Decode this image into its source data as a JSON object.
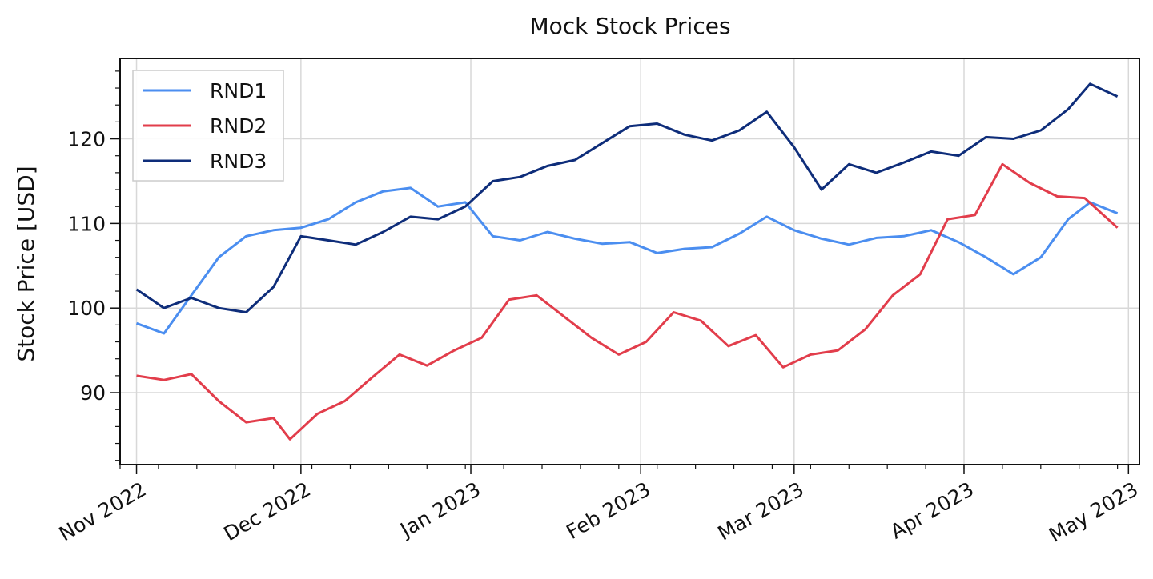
{
  "chart_data": {
    "type": "line",
    "title": "Mock Stock Prices",
    "xlabel": "",
    "ylabel": "Stock Price [USD]",
    "x_axis_type": "date",
    "xlim": [
      "2022-10-29",
      "2023-05-03"
    ],
    "ylim": [
      81.5,
      129.5
    ],
    "x_ticks": [
      "2022-11-01",
      "2022-12-01",
      "2023-01-01",
      "2023-02-01",
      "2023-03-01",
      "2023-04-01",
      "2023-05-01"
    ],
    "x_tick_labels": [
      "Nov 2022",
      "Dec 2022",
      "Jan 2023",
      "Feb 2023",
      "Mar 2023",
      "Apr 2023",
      "May 2023"
    ],
    "y_ticks": [
      90,
      100,
      110,
      120
    ],
    "y_tick_labels": [
      "90",
      "100",
      "110",
      "120"
    ],
    "grid": true,
    "legend_position": "top-left",
    "series": [
      {
        "name": "RND1",
        "color": "#4b8ef0",
        "points": [
          [
            "2022-11-01",
            98.2
          ],
          [
            "2022-11-06",
            97.0
          ],
          [
            "2022-11-11",
            101.5
          ],
          [
            "2022-11-16",
            106.0
          ],
          [
            "2022-11-21",
            108.5
          ],
          [
            "2022-11-26",
            109.2
          ],
          [
            "2022-12-01",
            109.5
          ],
          [
            "2022-12-06",
            110.5
          ],
          [
            "2022-12-11",
            112.5
          ],
          [
            "2022-12-16",
            113.8
          ],
          [
            "2022-12-21",
            114.2
          ],
          [
            "2022-12-26",
            112.0
          ],
          [
            "2022-12-31",
            112.5
          ],
          [
            "2023-01-05",
            108.5
          ],
          [
            "2023-01-10",
            108.0
          ],
          [
            "2023-01-15",
            109.0
          ],
          [
            "2023-01-20",
            108.2
          ],
          [
            "2023-01-25",
            107.6
          ],
          [
            "2023-01-30",
            107.8
          ],
          [
            "2023-02-04",
            106.5
          ],
          [
            "2023-02-09",
            107.0
          ],
          [
            "2023-02-14",
            107.2
          ],
          [
            "2023-02-19",
            108.8
          ],
          [
            "2023-02-24",
            110.8
          ],
          [
            "2023-03-01",
            109.2
          ],
          [
            "2023-03-06",
            108.2
          ],
          [
            "2023-03-11",
            107.5
          ],
          [
            "2023-03-16",
            108.3
          ],
          [
            "2023-03-21",
            108.5
          ],
          [
            "2023-03-26",
            109.2
          ],
          [
            "2023-03-31",
            107.8
          ],
          [
            "2023-04-05",
            106.0
          ],
          [
            "2023-04-10",
            104.0
          ],
          [
            "2023-04-15",
            106.0
          ],
          [
            "2023-04-20",
            110.5
          ],
          [
            "2023-04-24",
            112.5
          ],
          [
            "2023-04-29",
            111.2
          ]
        ]
      },
      {
        "name": "RND2",
        "color": "#e23d4b",
        "points": [
          [
            "2022-11-01",
            92.0
          ],
          [
            "2022-11-06",
            91.5
          ],
          [
            "2022-11-11",
            92.2
          ],
          [
            "2022-11-16",
            89.0
          ],
          [
            "2022-11-21",
            86.5
          ],
          [
            "2022-11-26",
            87.0
          ],
          [
            "2022-11-29",
            84.5
          ],
          [
            "2022-12-04",
            87.5
          ],
          [
            "2022-12-09",
            89.0
          ],
          [
            "2022-12-14",
            91.8
          ],
          [
            "2022-12-19",
            94.5
          ],
          [
            "2022-12-24",
            93.2
          ],
          [
            "2022-12-29",
            95.0
          ],
          [
            "2023-01-03",
            96.5
          ],
          [
            "2023-01-08",
            101.0
          ],
          [
            "2023-01-13",
            101.5
          ],
          [
            "2023-01-18",
            99.0
          ],
          [
            "2023-01-23",
            96.5
          ],
          [
            "2023-01-28",
            94.5
          ],
          [
            "2023-02-02",
            96.0
          ],
          [
            "2023-02-07",
            99.5
          ],
          [
            "2023-02-12",
            98.5
          ],
          [
            "2023-02-17",
            95.5
          ],
          [
            "2023-02-22",
            96.8
          ],
          [
            "2023-02-27",
            93.0
          ],
          [
            "2023-03-04",
            94.5
          ],
          [
            "2023-03-09",
            95.0
          ],
          [
            "2023-03-14",
            97.5
          ],
          [
            "2023-03-19",
            101.5
          ],
          [
            "2023-03-24",
            104.0
          ],
          [
            "2023-03-29",
            110.5
          ],
          [
            "2023-04-03",
            111.0
          ],
          [
            "2023-04-08",
            117.0
          ],
          [
            "2023-04-13",
            114.8
          ],
          [
            "2023-04-18",
            113.2
          ],
          [
            "2023-04-23",
            113.0
          ],
          [
            "2023-04-29",
            109.5
          ]
        ]
      },
      {
        "name": "RND3",
        "color": "#0e2d7a",
        "points": [
          [
            "2022-11-01",
            102.2
          ],
          [
            "2022-11-06",
            100.0
          ],
          [
            "2022-11-11",
            101.2
          ],
          [
            "2022-11-16",
            100.0
          ],
          [
            "2022-11-21",
            99.5
          ],
          [
            "2022-11-26",
            102.5
          ],
          [
            "2022-12-01",
            108.5
          ],
          [
            "2022-12-06",
            108.0
          ],
          [
            "2022-12-11",
            107.5
          ],
          [
            "2022-12-16",
            109.0
          ],
          [
            "2022-12-21",
            110.8
          ],
          [
            "2022-12-26",
            110.5
          ],
          [
            "2022-12-31",
            112.0
          ],
          [
            "2023-01-05",
            115.0
          ],
          [
            "2023-01-10",
            115.5
          ],
          [
            "2023-01-15",
            116.8
          ],
          [
            "2023-01-20",
            117.5
          ],
          [
            "2023-01-25",
            119.5
          ],
          [
            "2023-01-30",
            121.5
          ],
          [
            "2023-02-04",
            121.8
          ],
          [
            "2023-02-09",
            120.5
          ],
          [
            "2023-02-14",
            119.8
          ],
          [
            "2023-02-19",
            121.0
          ],
          [
            "2023-02-24",
            123.2
          ],
          [
            "2023-03-01",
            119.0
          ],
          [
            "2023-03-06",
            114.0
          ],
          [
            "2023-03-11",
            117.0
          ],
          [
            "2023-03-16",
            116.0
          ],
          [
            "2023-03-21",
            117.2
          ],
          [
            "2023-03-26",
            118.5
          ],
          [
            "2023-03-31",
            118.0
          ],
          [
            "2023-04-05",
            120.2
          ],
          [
            "2023-04-10",
            120.0
          ],
          [
            "2023-04-15",
            121.0
          ],
          [
            "2023-04-20",
            123.5
          ],
          [
            "2023-04-24",
            126.5
          ],
          [
            "2023-04-29",
            125.0
          ]
        ]
      }
    ]
  }
}
